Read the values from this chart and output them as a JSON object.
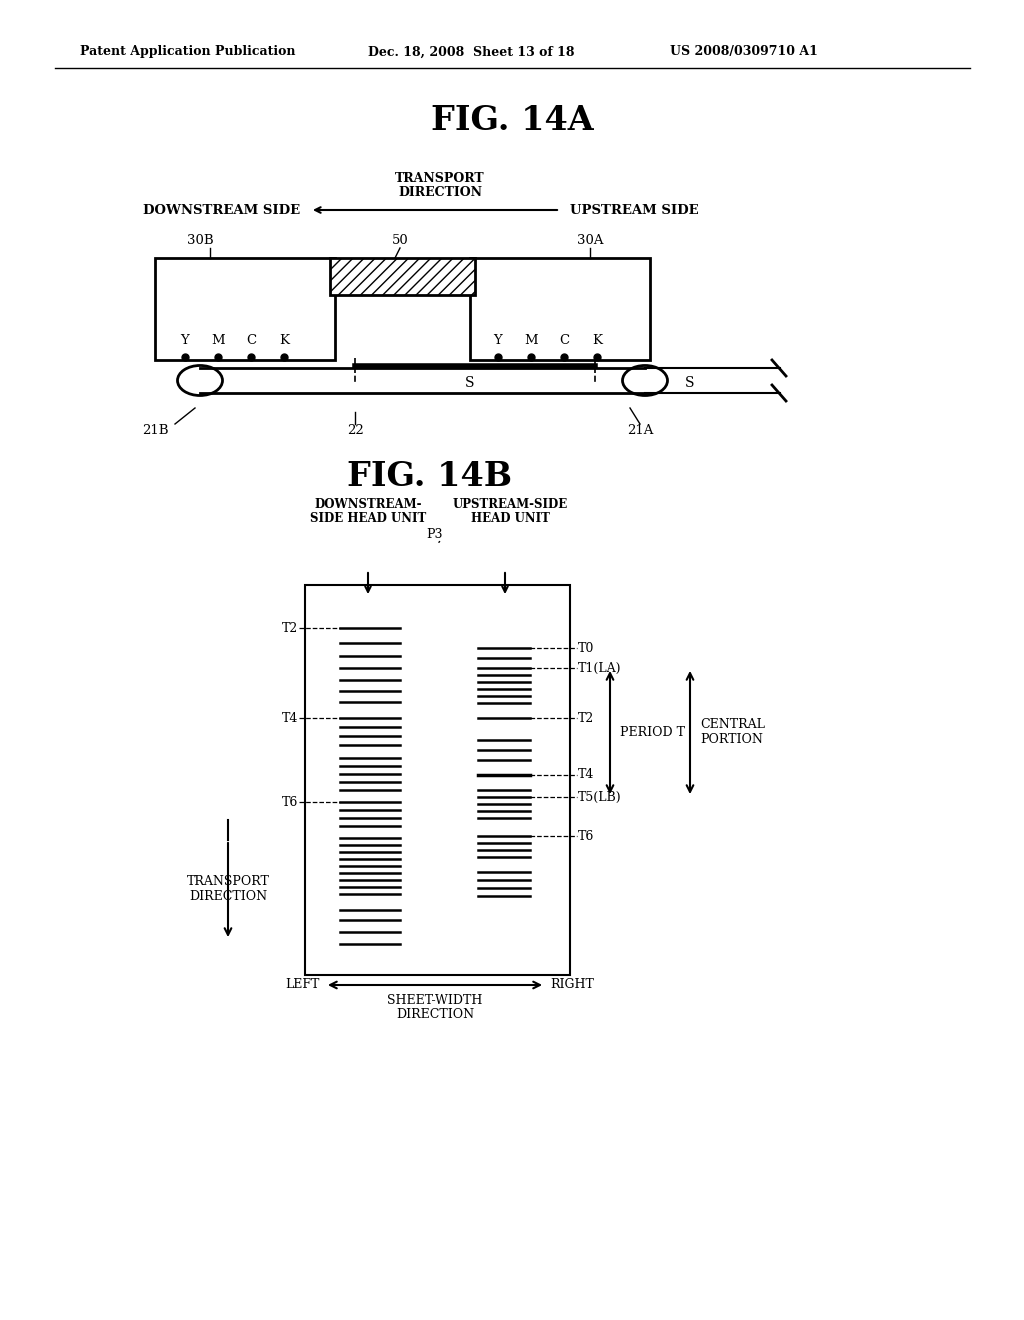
{
  "bg_color": "#ffffff",
  "header_left": "Patent Application Publication",
  "header_mid": "Dec. 18, 2008  Sheet 13 of 18",
  "header_right": "US 2008/0309710 A1",
  "fig14a_title": "FIG. 14A",
  "fig14b_title": "FIG. 14B"
}
